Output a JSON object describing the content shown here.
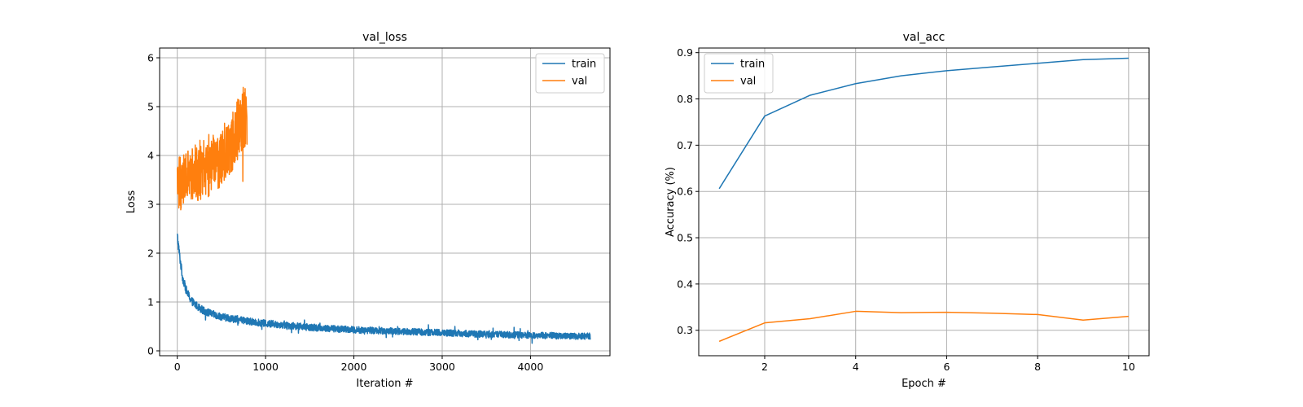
{
  "chart_data": [
    {
      "type": "line",
      "title": "val_loss",
      "xlabel": "Iteration #",
      "ylabel": "Loss",
      "xlim": [
        -200,
        4900
      ],
      "ylim": [
        -0.1,
        6.2
      ],
      "xticks": [
        0,
        1000,
        2000,
        3000,
        4000
      ],
      "yticks": [
        0,
        1,
        2,
        3,
        4,
        5,
        6
      ],
      "grid": true,
      "legend_position": "upper right",
      "series": [
        {
          "name": "train",
          "color": "#1f77b4",
          "x": [
            0,
            30,
            60,
            100,
            150,
            200,
            300,
            400,
            500,
            700,
            1000,
            1500,
            2000,
            2500,
            3000,
            3500,
            4000,
            4500,
            4680
          ],
          "y": [
            2.35,
            1.9,
            1.5,
            1.25,
            1.05,
            0.95,
            0.82,
            0.75,
            0.7,
            0.63,
            0.56,
            0.48,
            0.43,
            0.4,
            0.37,
            0.34,
            0.32,
            0.3,
            0.3
          ],
          "noise_band": 0.22
        },
        {
          "name": "val",
          "color": "#ff7f0e",
          "x": [
            0,
            50,
            100,
            150,
            200,
            250,
            300,
            350,
            400,
            450,
            500,
            550,
            600,
            650,
            700,
            750,
            790
          ],
          "y": [
            3.5,
            3.4,
            3.6,
            3.5,
            3.7,
            3.6,
            3.8,
            3.7,
            3.9,
            3.8,
            4.0,
            4.1,
            4.2,
            4.4,
            4.6,
            4.8,
            4.7
          ],
          "noise_band": 1.1
        }
      ]
    },
    {
      "type": "line",
      "title": "val_acc",
      "xlabel": "Epoch #",
      "ylabel": "Accuracy (%)",
      "xlim": [
        0.55,
        10.45
      ],
      "ylim": [
        0.245,
        0.91
      ],
      "xticks": [
        2,
        4,
        6,
        8,
        10
      ],
      "yticks": [
        0.3,
        0.4,
        0.5,
        0.6,
        0.7,
        0.8,
        0.9
      ],
      "grid": true,
      "legend_position": "upper left",
      "series": [
        {
          "name": "train",
          "color": "#1f77b4",
          "x": [
            1,
            2,
            3,
            4,
            5,
            6,
            7,
            8,
            9,
            10
          ],
          "y": [
            0.606,
            0.763,
            0.808,
            0.833,
            0.85,
            0.861,
            0.869,
            0.877,
            0.885,
            0.888
          ]
        },
        {
          "name": "val",
          "color": "#ff7f0e",
          "x": [
            1,
            2,
            3,
            4,
            5,
            6,
            7,
            8,
            9,
            10
          ],
          "y": [
            0.276,
            0.316,
            0.325,
            0.341,
            0.338,
            0.339,
            0.337,
            0.334,
            0.322,
            0.33
          ]
        }
      ]
    }
  ]
}
